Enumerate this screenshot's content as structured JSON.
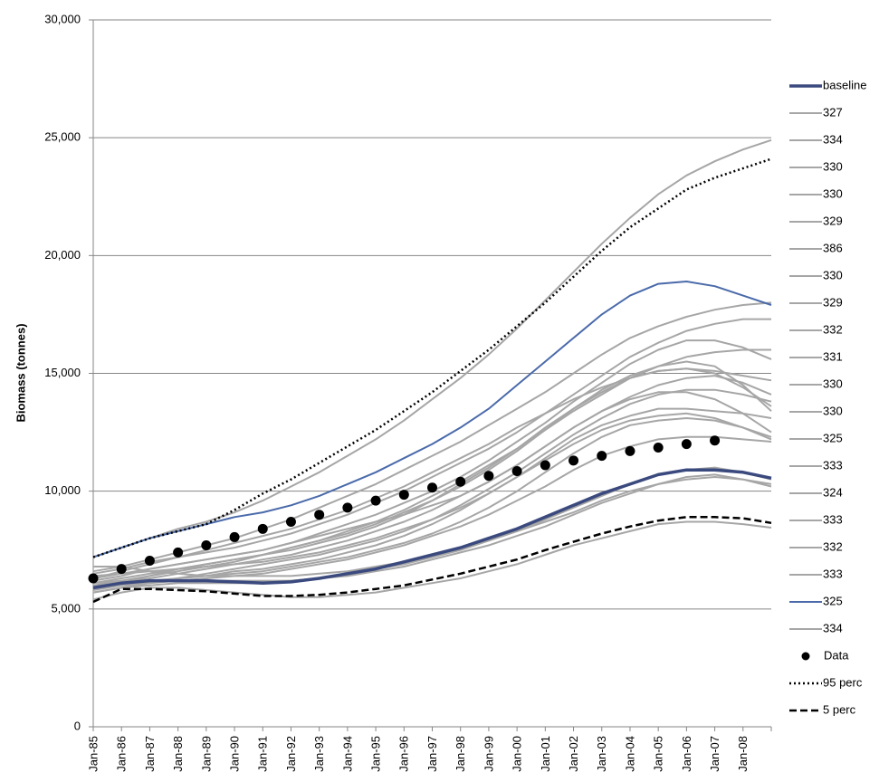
{
  "chart_data": {
    "type": "line",
    "y_label": "Biomass (tonnes)",
    "categories": [
      "Jan-85",
      "Jan-86",
      "Jan-87",
      "Jan-88",
      "Jan-89",
      "Jan-90",
      "Jan-91",
      "Jan-92",
      "Jan-93",
      "Jan-94",
      "Jan-95",
      "Jan-96",
      "Jan-97",
      "Jan-98",
      "Jan-99",
      "Jan-00",
      "Jan-01",
      "Jan-02",
      "Jan-03",
      "Jan-04",
      "Jan-05",
      "Jan-06",
      "Jan-07",
      "Jan-08",
      null
    ],
    "ylim": [
      0,
      30000
    ],
    "yticks": [
      0,
      {
        "value": 5000,
        "label": "5,000"
      },
      {
        "value": 10000,
        "label": "10,000"
      },
      {
        "value": 15000,
        "label": "15,000"
      },
      {
        "value": 20000,
        "label": "20,000"
      },
      {
        "value": 25000,
        "label": "25,000"
      },
      {
        "value": 30000,
        "label": "30,000"
      }
    ],
    "grid": true,
    "legend": "right",
    "series": [
      {
        "name": "baseline",
        "color": "#3b4a7e",
        "width": 3.5,
        "style": "solid",
        "values": [
          5900,
          6100,
          6200,
          6200,
          6200,
          6150,
          6100,
          6150,
          6300,
          6500,
          6700,
          7000,
          7300,
          7600,
          8000,
          8400,
          8900,
          9400,
          9900,
          10300,
          10700,
          10900,
          10900,
          10800,
          10550
        ]
      },
      {
        "name": "327",
        "color": "#a6a6a6",
        "width": 2,
        "style": "solid",
        "values": [
          7200,
          7600,
          8000,
          8400,
          8700,
          9100,
          9600,
          10200,
          10800,
          11500,
          12200,
          13000,
          13900,
          14800,
          15800,
          16900,
          18100,
          19300,
          20500,
          21600,
          22600,
          23400,
          24000,
          24500,
          24900
        ]
      },
      {
        "name": "334",
        "color": "#a6a6a6",
        "width": 2,
        "style": "solid",
        "values": [
          6600,
          6800,
          7100,
          7400,
          7700,
          8000,
          8400,
          8800,
          9300,
          9800,
          10300,
          10900,
          11500,
          12100,
          12800,
          13500,
          14200,
          15000,
          15800,
          16500,
          17000,
          17400,
          17700,
          17900,
          18000
        ]
      },
      {
        "name": "330",
        "color": "#a6a6a6",
        "width": 2,
        "style": "solid",
        "values": [
          6500,
          6700,
          7000,
          7200,
          7400,
          7600,
          7900,
          8200,
          8600,
          9000,
          9500,
          10000,
          10600,
          11200,
          11800,
          12500,
          13300,
          14100,
          14900,
          15700,
          16300,
          16800,
          17100,
          17300,
          17300
        ]
      },
      {
        "name": "330",
        "color": "#a6a6a6",
        "width": 2,
        "style": "solid",
        "values": [
          6200,
          6400,
          6700,
          6900,
          7100,
          7300,
          7500,
          7800,
          8200,
          8600,
          9000,
          9500,
          10000,
          10600,
          11300,
          12100,
          12900,
          13800,
          14600,
          15400,
          16000,
          16400,
          16400,
          16100,
          15600
        ]
      },
      {
        "name": "329",
        "color": "#a6a6a6",
        "width": 2,
        "style": "solid",
        "values": [
          6000,
          6200,
          6400,
          6600,
          6800,
          7000,
          7300,
          7600,
          7900,
          8300,
          8700,
          9200,
          9800,
          10400,
          11100,
          11800,
          12600,
          13400,
          14100,
          14800,
          15300,
          15700,
          15900,
          16000,
          16000
        ]
      },
      {
        "name": "386",
        "color": "#a6a6a6",
        "width": 2,
        "style": "solid",
        "values": [
          5800,
          6100,
          6400,
          6700,
          6900,
          7100,
          7300,
          7600,
          7900,
          8200,
          8600,
          9100,
          9600,
          10200,
          10900,
          11700,
          12600,
          13500,
          14300,
          14900,
          15300,
          15500,
          15300,
          14500,
          13400
        ]
      },
      {
        "name": "330",
        "color": "#a6a6a6",
        "width": 2,
        "style": "solid",
        "values": [
          6100,
          6300,
          6500,
          6700,
          6900,
          7100,
          7300,
          7500,
          7800,
          8100,
          8500,
          9000,
          9600,
          10300,
          11000,
          11800,
          12700,
          13500,
          14200,
          14800,
          15100,
          15200,
          15000,
          14400,
          13600
        ]
      },
      {
        "name": "329",
        "color": "#a6a6a6",
        "width": 2,
        "style": "solid",
        "values": [
          5900,
          6100,
          6300,
          6500,
          6700,
          6900,
          7100,
          7300,
          7600,
          7900,
          8300,
          8700,
          9200,
          9800,
          10400,
          11100,
          11900,
          12700,
          13400,
          14000,
          14500,
          14800,
          14900,
          14600,
          14100
        ]
      },
      {
        "name": "332",
        "color": "#a6a6a6",
        "width": 2,
        "style": "solid",
        "values": [
          5700,
          5900,
          6100,
          6300,
          6500,
          6700,
          6900,
          7100,
          7300,
          7600,
          7900,
          8300,
          8800,
          9400,
          10100,
          10800,
          11600,
          12400,
          13100,
          13700,
          14100,
          14300,
          14300,
          14100,
          13800
        ]
      },
      {
        "name": "331",
        "color": "#a6a6a6",
        "width": 2,
        "style": "solid",
        "values": [
          6300,
          6500,
          6700,
          6900,
          7100,
          7300,
          7500,
          7800,
          8100,
          8400,
          8700,
          9000,
          9400,
          9800,
          10400,
          11100,
          11900,
          12700,
          13400,
          13900,
          14200,
          14200,
          13900,
          13300,
          12500
        ]
      },
      {
        "name": "330",
        "color": "#a6a6a6",
        "width": 2,
        "style": "solid",
        "values": [
          5800,
          6000,
          6100,
          6300,
          6400,
          6600,
          6700,
          6900,
          7100,
          7400,
          7700,
          8100,
          8600,
          9200,
          9900,
          10600,
          11400,
          12200,
          12800,
          13200,
          13500,
          13500,
          13400,
          13300,
          13100
        ]
      },
      {
        "name": "330",
        "color": "#a6a6a6",
        "width": 2,
        "style": "solid",
        "values": [
          6400,
          6500,
          6600,
          6700,
          6800,
          6900,
          7000,
          7200,
          7400,
          7700,
          8000,
          8400,
          8800,
          9300,
          9900,
          10600,
          11300,
          12000,
          12600,
          13000,
          13200,
          13300,
          13100,
          12700,
          12200
        ]
      },
      {
        "name": "325",
        "color": "#a6a6a6",
        "width": 2,
        "style": "solid",
        "values": [
          6000,
          6100,
          6200,
          6300,
          6400,
          6500,
          6600,
          6800,
          7000,
          7200,
          7500,
          7800,
          8200,
          8700,
          9300,
          10000,
          10800,
          11600,
          12300,
          12800,
          13000,
          13100,
          13000,
          12700,
          12300
        ]
      },
      {
        "name": "333",
        "color": "#a6a6a6",
        "width": 2,
        "style": "solid",
        "values": [
          5900,
          6000,
          6100,
          6200,
          6300,
          6400,
          6500,
          6700,
          6900,
          7100,
          7400,
          7700,
          8100,
          8500,
          9000,
          9600,
          10200,
          10900,
          11500,
          11900,
          12200,
          12300,
          12300,
          12200,
          12100
        ]
      },
      {
        "name": "324",
        "color": "#a6a6a6",
        "width": 2,
        "style": "solid",
        "values": [
          5700,
          5900,
          6000,
          6100,
          6100,
          6100,
          6100,
          6200,
          6300,
          6500,
          6700,
          6900,
          7200,
          7500,
          7900,
          8300,
          8800,
          9300,
          9800,
          10300,
          10700,
          10900,
          11000,
          10800,
          10500
        ]
      },
      {
        "name": "333",
        "color": "#a6a6a6",
        "width": 2,
        "style": "solid",
        "values": [
          6100,
          6200,
          6200,
          6200,
          6200,
          6200,
          6200,
          6200,
          6300,
          6400,
          6600,
          6800,
          7100,
          7400,
          7700,
          8100,
          8500,
          9000,
          9500,
          9900,
          10300,
          10600,
          10700,
          10500,
          10200
        ]
      },
      {
        "name": "332",
        "color": "#a6a6a6",
        "width": 2,
        "style": "solid",
        "values": [
          6800,
          6800,
          6600,
          6500,
          6400,
          6400,
          6400,
          6400,
          6500,
          6600,
          6800,
          7000,
          7300,
          7600,
          7900,
          8300,
          8700,
          9100,
          9600,
          10000,
          10300,
          10500,
          10600,
          10500,
          10300
        ]
      },
      {
        "name": "333",
        "color": "#a6a6a6",
        "width": 2,
        "style": "solid",
        "values": [
          5400,
          5700,
          5900,
          5900,
          5800,
          5700,
          5600,
          5500,
          5500,
          5600,
          5700,
          5900,
          6100,
          6300,
          6600,
          6900,
          7300,
          7700,
          8000,
          8300,
          8600,
          8700,
          8700,
          8600,
          8450
        ]
      },
      {
        "name": "325",
        "color": "#4a6aaa",
        "width": 2,
        "style": "solid",
        "values": [
          7200,
          7600,
          8000,
          8300,
          8600,
          8900,
          9100,
          9400,
          9800,
          10300,
          10800,
          11400,
          12000,
          12700,
          13500,
          14500,
          15500,
          16500,
          17500,
          18300,
          18800,
          18900,
          18700,
          18300,
          17900
        ]
      },
      {
        "name": "334",
        "color": "#a6a6a6",
        "width": 2,
        "style": "solid",
        "values": [
          6300,
          6600,
          6900,
          7200,
          7500,
          7800,
          8100,
          8400,
          8800,
          9200,
          9700,
          10200,
          10800,
          11400,
          12000,
          12700,
          13300,
          13900,
          14400,
          14800,
          15100,
          15200,
          15100,
          14900,
          14700
        ]
      },
      {
        "name": "Data",
        "color": "#000000",
        "width": 0,
        "style": "markers",
        "values": [
          6300,
          6700,
          7050,
          7400,
          7700,
          8050,
          8400,
          8700,
          9000,
          9300,
          9600,
          9850,
          10150,
          10400,
          10650,
          10850,
          11100,
          11300,
          11500,
          11700,
          11850,
          12000,
          12150,
          null,
          null
        ]
      },
      {
        "name": "95 perc",
        "color": "#000000",
        "width": 2.5,
        "style": "dotted",
        "values": [
          7200,
          7600,
          8000,
          8300,
          8600,
          9200,
          9900,
          10500,
          11200,
          11900,
          12600,
          13400,
          14200,
          15100,
          16000,
          17000,
          18000,
          19100,
          20200,
          21200,
          22000,
          22800,
          23300,
          23700,
          24100
        ]
      },
      {
        "name": "5 perc",
        "color": "#000000",
        "width": 2.5,
        "style": "dashed",
        "values": [
          5300,
          5850,
          5850,
          5800,
          5750,
          5650,
          5550,
          5550,
          5600,
          5700,
          5850,
          6000,
          6250,
          6500,
          6800,
          7100,
          7500,
          7850,
          8200,
          8500,
          8750,
          8900,
          8900,
          8850,
          8650
        ]
      }
    ]
  }
}
